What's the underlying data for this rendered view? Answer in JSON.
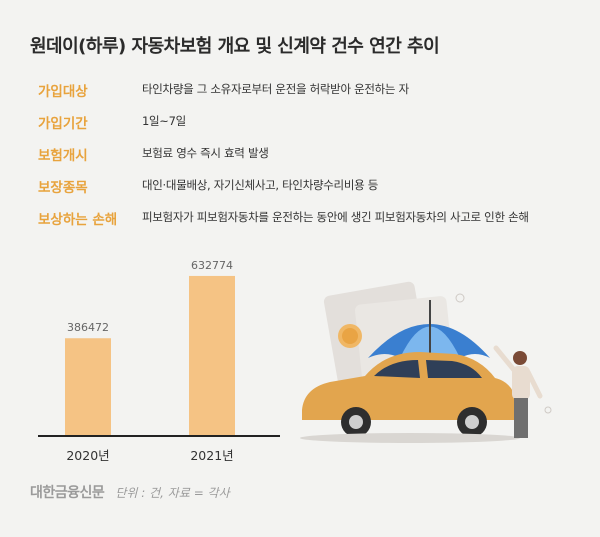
{
  "title": "원데이(하루) 자동차보험 개요 및 신계약 건수 연간 추이",
  "info": [
    {
      "label": "가입대상",
      "value": "타인차량을 그 소유자로부터 운전을 허락받아 운전하는 자"
    },
    {
      "label": "가입기간",
      "value": "1일~7일"
    },
    {
      "label": "보험개시",
      "value": "보험료 영수 즉시 효력 발생"
    },
    {
      "label": "보장종목",
      "value": "대인·대물배상, 자기신체사고, 타인차량수리비용 등"
    },
    {
      "label": "보상하는 손해",
      "value": "피보험자가 피보험자동차를 운전하는 동안에 생긴 피보험자동차의 사고로 인한 손해"
    }
  ],
  "chart_data": {
    "type": "bar",
    "categories": [
      "2020년",
      "2021년"
    ],
    "values": [
      386472,
      632774
    ],
    "value_labels": [
      "386472",
      "632774"
    ],
    "ylim": [
      0,
      680000
    ],
    "bar_color": "#f5c384"
  },
  "footer": {
    "logo": "대한금융신문",
    "note": "단위 : 건, 자료 = 각사"
  },
  "colors": {
    "accent": "#e8a33d",
    "bar": "#f5c384",
    "background": "#f3f3f1"
  }
}
